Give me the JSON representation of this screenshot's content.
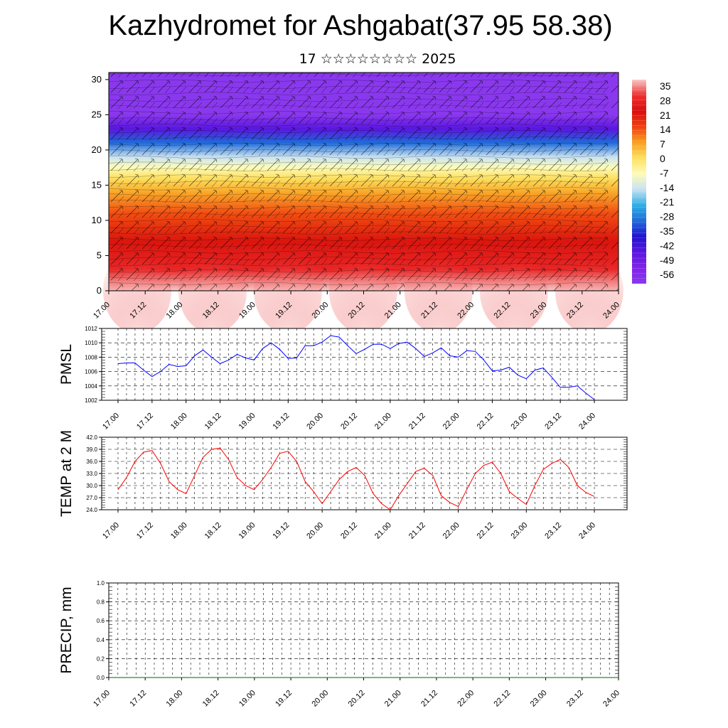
{
  "header": {
    "title": "Kazhydromet for Ashgabat(37.95 58.38)",
    "subtitle": "17 ☆☆☆☆☆☆☆☆ 2025"
  },
  "chart_data": [
    {
      "type": "heatmap",
      "name": "cross-section",
      "xlabel": "",
      "ylabel": "",
      "x_ticks": [
        "17.00",
        "17.12",
        "18.00",
        "18.12",
        "19.00",
        "19.12",
        "20.00",
        "20.12",
        "21.00",
        "21.12",
        "22.00",
        "22.12",
        "23.00",
        "23.12",
        "24.00"
      ],
      "y_ticks": [
        0,
        5,
        10,
        15,
        20,
        25,
        30
      ],
      "ylim": [
        0,
        31
      ],
      "overlay": "wind barbs",
      "colorbar": {
        "labels": [
          "35",
          "28",
          "21",
          "14",
          "7",
          "0",
          "-7",
          "-14",
          "-21",
          "-28",
          "-35",
          "-42",
          "-49",
          "-56"
        ],
        "colors": [
          "#f8c8c8",
          "#ee3030",
          "#d80e0e",
          "#f04010",
          "#f8a020",
          "#fde060",
          "#fdfbb8",
          "#c8e2f2",
          "#2eaee8",
          "#1f6cd8",
          "#2214d0",
          "#5a16e0",
          "#8024e8",
          "#8a38ee"
        ]
      },
      "field": {
        "layers": [
          {
            "z": 0,
            "temp": 35
          },
          {
            "z": 3,
            "temp": 26
          },
          {
            "z": 7,
            "temp": 20
          },
          {
            "z": 11,
            "temp": 13
          },
          {
            "z": 14,
            "temp": 6
          },
          {
            "z": 16,
            "temp": 0
          },
          {
            "z": 17.5,
            "temp": -7
          },
          {
            "z": 19,
            "temp": -14
          },
          {
            "z": 21,
            "temp": -28
          },
          {
            "z": 23,
            "temp": -42
          },
          {
            "z": 25,
            "temp": -56
          },
          {
            "z": 31,
            "temp": -60
          }
        ]
      }
    },
    {
      "type": "line",
      "name": "pmsl",
      "ylabel": "PMSL",
      "ylim": [
        1002,
        1012
      ],
      "y_ticks": [
        "1002",
        "1004",
        "1006",
        "1008",
        "1010",
        "1012"
      ],
      "x_ticks": [
        "17.00",
        "17.12",
        "18.00",
        "18.12",
        "19.00",
        "19.12",
        "20.00",
        "20.12",
        "21.00",
        "21.12",
        "22.00",
        "22.12",
        "23.00",
        "23.12",
        "24.00"
      ],
      "color": "#0000ff",
      "x": [
        0,
        3,
        6,
        9,
        12,
        15,
        18,
        21,
        24,
        27,
        30,
        33,
        36,
        39,
        42,
        45,
        48,
        51,
        54,
        57,
        60,
        63,
        66,
        69,
        72,
        75,
        78,
        81,
        84,
        87,
        90,
        93,
        96,
        99,
        102,
        105,
        108,
        111,
        114,
        117,
        120,
        123,
        126,
        129,
        132,
        135,
        138,
        141,
        144,
        147,
        150,
        153,
        156,
        159,
        162,
        165,
        168
      ],
      "values": [
        1007.1,
        1007.2,
        1007.2,
        1006.2,
        1005.3,
        1006.0,
        1007.0,
        1006.7,
        1006.8,
        1008.2,
        1009.0,
        1008.0,
        1007.1,
        1007.6,
        1008.4,
        1007.9,
        1007.6,
        1009.2,
        1010.0,
        1009.1,
        1007.8,
        1007.9,
        1009.6,
        1009.6,
        1010.1,
        1011.0,
        1010.8,
        1009.6,
        1008.5,
        1009.1,
        1009.8,
        1009.8,
        1009.2,
        1009.9,
        1010.1,
        1009.2,
        1008.1,
        1008.6,
        1009.3,
        1008.2,
        1008.0,
        1008.9,
        1008.8,
        1007.6,
        1006.1,
        1006.2,
        1006.6,
        1005.5,
        1005.0,
        1006.2,
        1006.5,
        1005.2,
        1003.8,
        1003.8,
        1004.0,
        1003.0,
        1002.1
      ]
    },
    {
      "type": "line",
      "name": "temp2m",
      "ylabel": "TEMP at 2 M",
      "ylim": [
        24,
        42
      ],
      "y_ticks": [
        "24.0",
        "27.0",
        "30.0",
        "33.0",
        "36.0",
        "39.0",
        "42.0"
      ],
      "x_ticks": [
        "17.00",
        "17.12",
        "18.00",
        "18.12",
        "19.00",
        "19.12",
        "20.00",
        "20.12",
        "21.00",
        "21.12",
        "22.00",
        "22.12",
        "23.00",
        "23.12",
        "24.00"
      ],
      "color": "#ff0000",
      "x": [
        0,
        3,
        6,
        9,
        12,
        15,
        18,
        21,
        24,
        27,
        30,
        33,
        36,
        39,
        42,
        45,
        48,
        51,
        54,
        57,
        60,
        63,
        66,
        69,
        72,
        75,
        78,
        81,
        84,
        87,
        90,
        93,
        96,
        99,
        102,
        105,
        108,
        111,
        114,
        117,
        120,
        123,
        126,
        129,
        132,
        135,
        138,
        141,
        144,
        147,
        150,
        153,
        156,
        159,
        162,
        165,
        168
      ],
      "values": [
        29.0,
        32.0,
        36.0,
        38.3,
        38.7,
        35.5,
        31.0,
        29.0,
        28.0,
        32.5,
        37.0,
        39.0,
        39.3,
        36.5,
        32.0,
        30.0,
        29.0,
        31.5,
        34.5,
        38.0,
        38.5,
        36.0,
        31.0,
        28.5,
        25.5,
        28.5,
        31.5,
        33.5,
        34.5,
        32.5,
        28.0,
        25.5,
        24.0,
        27.5,
        30.5,
        33.5,
        34.3,
        32.5,
        27.5,
        25.8,
        24.8,
        29.0,
        33.0,
        35.0,
        35.8,
        33.0,
        28.5,
        26.8,
        25.3,
        30.0,
        34.0,
        35.5,
        36.5,
        34.5,
        30.0,
        28.3,
        27.3
      ]
    },
    {
      "type": "line",
      "name": "precip",
      "ylabel": "PRECIP, mm",
      "ylim": [
        0,
        1
      ],
      "y_ticks": [
        "0.0",
        "0.2",
        "0.4",
        "0.6",
        "0.8",
        "1.0"
      ],
      "x_ticks": [
        "17.00",
        "17.12",
        "18.00",
        "18.12",
        "19.00",
        "19.12",
        "20.00",
        "20.12",
        "21.00",
        "21.12",
        "22.00",
        "22.12",
        "23.00",
        "23.12",
        "24.00"
      ],
      "color": "#006400",
      "x": [
        0,
        168
      ],
      "values": [
        0,
        0
      ]
    }
  ]
}
